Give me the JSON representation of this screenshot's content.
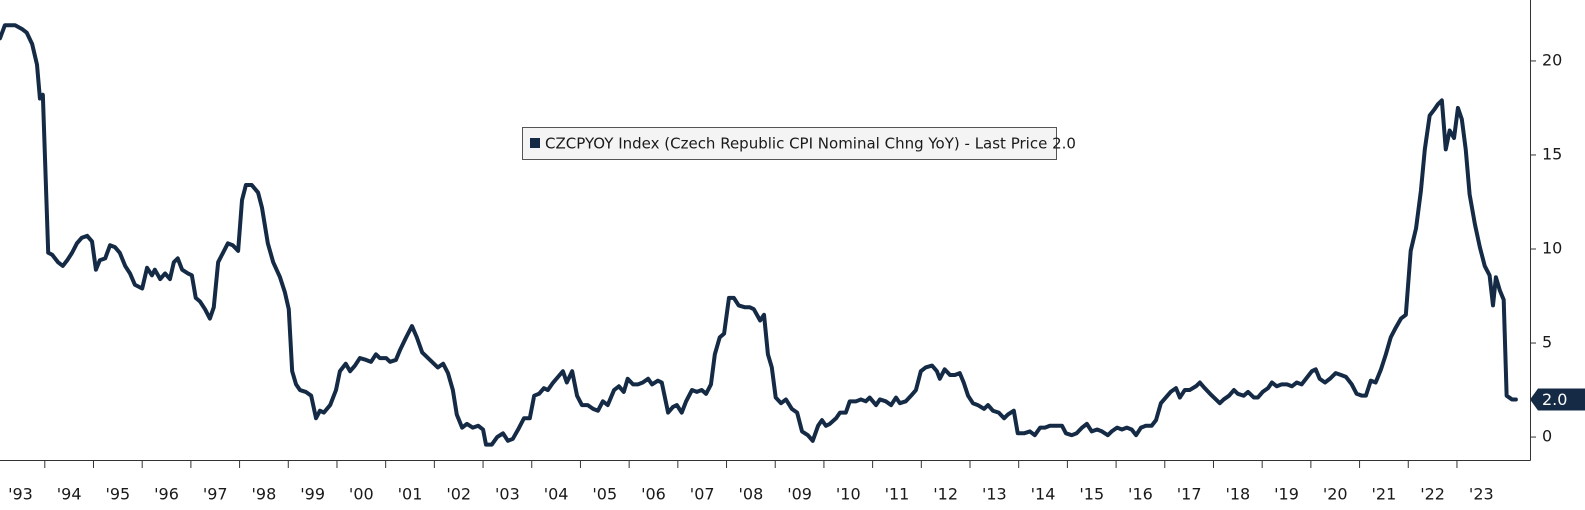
{
  "chart_data": {
    "type": "line",
    "x": [
      1993.08,
      1993.18,
      1993.39,
      1993.53,
      1993.63,
      1993.74,
      1993.84,
      1993.9,
      1993.96,
      1994.07,
      1994.15,
      1994.27,
      1994.37,
      1994.46,
      1994.56,
      1994.66,
      1994.76,
      1994.87,
      1994.97,
      1995.05,
      1995.13,
      1995.24,
      1995.34,
      1995.44,
      1995.54,
      1995.65,
      1995.75,
      1995.85,
      1996.0,
      1996.1,
      1996.2,
      1996.26,
      1996.37,
      1996.47,
      1996.57,
      1996.65,
      1996.73,
      1996.82,
      1996.94,
      1997.02,
      1997.1,
      1997.19,
      1997.29,
      1997.39,
      1997.47,
      1997.56,
      1997.64,
      1997.76,
      1997.86,
      1997.97,
      1998.05,
      1998.13,
      1998.25,
      1998.38,
      1998.46,
      1998.58,
      1998.69,
      1998.83,
      1998.93,
      1999.01,
      1999.08,
      1999.16,
      1999.24,
      1999.36,
      1999.47,
      1999.57,
      1999.65,
      1999.73,
      1999.86,
      1999.98,
      2000.06,
      2000.18,
      2000.27,
      2000.37,
      2000.47,
      2000.6,
      2000.7,
      2000.8,
      2000.88,
      2001.01,
      2001.09,
      2001.21,
      2001.29,
      2001.42,
      2001.54,
      2001.64,
      2001.75,
      2001.87,
      2001.99,
      2002.07,
      2002.18,
      2002.28,
      2002.38,
      2002.46,
      2002.57,
      2002.67,
      2002.79,
      2002.9,
      2003.0,
      2003.06,
      2003.18,
      2003.29,
      2003.41,
      2003.51,
      2003.61,
      2003.72,
      2003.84,
      2003.96,
      2004.05,
      2004.15,
      2004.25,
      2004.33,
      2004.44,
      2004.54,
      2004.64,
      2004.72,
      2004.83,
      2004.93,
      2005.03,
      2005.15,
      2005.26,
      2005.36,
      2005.46,
      2005.56,
      2005.69,
      2005.79,
      2005.89,
      2005.97,
      2006.08,
      2006.18,
      2006.28,
      2006.39,
      2006.47,
      2006.59,
      2006.67,
      2006.8,
      2006.9,
      2006.98,
      2007.08,
      2007.17,
      2007.29,
      2007.39,
      2007.49,
      2007.58,
      2007.68,
      2007.76,
      2007.86,
      2007.95,
      2008.05,
      2008.15,
      2008.25,
      2008.38,
      2008.48,
      2008.56,
      2008.69,
      2008.77,
      2008.85,
      2008.93,
      2009.01,
      2009.12,
      2009.22,
      2009.34,
      2009.45,
      2009.55,
      2009.67,
      2009.77,
      2009.88,
      2009.96,
      2010.04,
      2010.12,
      2010.25,
      2010.33,
      2010.45,
      2010.53,
      2010.66,
      2010.76,
      2010.86,
      2010.94,
      2011.07,
      2011.15,
      2011.27,
      2011.38,
      2011.48,
      2011.56,
      2011.68,
      2011.79,
      2011.89,
      2011.99,
      2012.09,
      2012.22,
      2012.32,
      2012.38,
      2012.48,
      2012.59,
      2012.69,
      2012.79,
      2012.87,
      2012.96,
      2013.06,
      2013.16,
      2013.29,
      2013.37,
      2013.47,
      2013.59,
      2013.7,
      2013.78,
      2013.9,
      2013.98,
      2014.11,
      2014.23,
      2014.33,
      2014.44,
      2014.54,
      2014.64,
      2014.76,
      2014.89,
      2014.97,
      2015.09,
      2015.19,
      2015.3,
      2015.4,
      2015.5,
      2015.61,
      2015.71,
      2015.83,
      2015.91,
      2016.02,
      2016.12,
      2016.22,
      2016.32,
      2016.41,
      2016.51,
      2016.61,
      2016.73,
      2016.82,
      2016.92,
      2017.02,
      2017.12,
      2017.23,
      2017.31,
      2017.41,
      2017.51,
      2017.64,
      2017.72,
      2017.82,
      2017.93,
      2018.05,
      2018.13,
      2018.21,
      2018.32,
      2018.42,
      2018.5,
      2018.62,
      2018.71,
      2018.83,
      2018.91,
      2019.01,
      2019.12,
      2019.2,
      2019.3,
      2019.4,
      2019.51,
      2019.61,
      2019.71,
      2019.81,
      2019.9,
      2020.02,
      2020.1,
      2020.18,
      2020.29,
      2020.39,
      2020.51,
      2020.62,
      2020.72,
      2020.84,
      2020.94,
      2021.05,
      2021.13,
      2021.23,
      2021.33,
      2021.44,
      2021.54,
      2021.64,
      2021.74,
      2021.85,
      2021.95,
      2022.05,
      2022.16,
      2022.26,
      2022.34,
      2022.44,
      2022.53,
      2022.61,
      2022.69,
      2022.77,
      2022.85,
      2022.94,
      2023.02,
      2023.1,
      2023.18,
      2023.26,
      2023.37,
      2023.47,
      2023.57,
      2023.67,
      2023.74,
      2023.8,
      2023.88,
      2023.96,
      2024.02,
      2024.13,
      2024.21
    ],
    "series": [
      {
        "name": "CZCPYOY Index (Czech Republic CPI Nominal Chng YoY) - Last Price 2.0",
        "color": "#142a45",
        "values": [
          21.2,
          21.9,
          21.9,
          21.7,
          21.5,
          20.9,
          19.8,
          18.0,
          18.2,
          9.8,
          9.7,
          9.3,
          9.1,
          9.4,
          9.8,
          10.3,
          10.6,
          10.7,
          10.4,
          8.9,
          9.4,
          9.5,
          10.2,
          10.1,
          9.8,
          9.1,
          8.7,
          8.1,
          7.9,
          9.0,
          8.6,
          8.9,
          8.4,
          8.7,
          8.4,
          9.3,
          9.5,
          8.9,
          8.7,
          8.6,
          7.4,
          7.2,
          6.8,
          6.3,
          6.9,
          9.3,
          9.7,
          10.3,
          10.2,
          9.9,
          12.6,
          13.4,
          13.4,
          13.0,
          12.2,
          10.3,
          9.3,
          8.5,
          7.7,
          6.8,
          3.5,
          2.8,
          2.5,
          2.4,
          2.2,
          1.0,
          1.4,
          1.3,
          1.7,
          2.5,
          3.5,
          3.9,
          3.5,
          3.8,
          4.2,
          4.1,
          4.0,
          4.4,
          4.2,
          4.2,
          4.0,
          4.1,
          4.6,
          5.3,
          5.9,
          5.3,
          4.5,
          4.2,
          3.9,
          3.7,
          3.9,
          3.4,
          2.5,
          1.2,
          0.5,
          0.7,
          0.5,
          0.6,
          0.4,
          -0.4,
          -0.4,
          0.0,
          0.2,
          -0.2,
          -0.1,
          0.4,
          1.0,
          1.0,
          2.2,
          2.3,
          2.6,
          2.5,
          2.9,
          3.2,
          3.5,
          2.9,
          3.5,
          2.2,
          1.7,
          1.7,
          1.5,
          1.4,
          1.9,
          1.7,
          2.5,
          2.7,
          2.4,
          3.1,
          2.8,
          2.8,
          2.9,
          3.1,
          2.8,
          3.0,
          2.9,
          1.3,
          1.6,
          1.7,
          1.3,
          1.9,
          2.5,
          2.4,
          2.5,
          2.3,
          2.8,
          4.4,
          5.3,
          5.5,
          7.4,
          7.4,
          7.0,
          6.9,
          6.9,
          6.8,
          6.2,
          6.5,
          4.4,
          3.7,
          2.1,
          1.8,
          2.0,
          1.5,
          1.3,
          0.3,
          0.1,
          -0.2,
          0.6,
          0.9,
          0.6,
          0.7,
          1.0,
          1.3,
          1.3,
          1.9,
          1.9,
          2.0,
          1.9,
          2.1,
          1.7,
          2.0,
          1.9,
          1.7,
          2.1,
          1.8,
          1.9,
          2.2,
          2.5,
          3.5,
          3.7,
          3.8,
          3.5,
          3.1,
          3.6,
          3.3,
          3.3,
          3.4,
          2.9,
          2.2,
          1.8,
          1.7,
          1.5,
          1.7,
          1.4,
          1.3,
          1.0,
          1.2,
          1.4,
          0.2,
          0.2,
          0.3,
          0.1,
          0.5,
          0.5,
          0.6,
          0.6,
          0.6,
          0.2,
          0.1,
          0.2,
          0.5,
          0.7,
          0.3,
          0.4,
          0.3,
          0.1,
          0.3,
          0.5,
          0.4,
          0.5,
          0.4,
          0.1,
          0.5,
          0.6,
          0.6,
          0.9,
          1.8,
          2.1,
          2.4,
          2.6,
          2.1,
          2.5,
          2.5,
          2.7,
          2.9,
          2.6,
          2.3,
          2.0,
          1.8,
          2.0,
          2.2,
          2.5,
          2.3,
          2.2,
          2.4,
          2.1,
          2.1,
          2.4,
          2.6,
          2.9,
          2.7,
          2.8,
          2.8,
          2.7,
          2.9,
          2.8,
          3.1,
          3.5,
          3.6,
          3.1,
          2.9,
          3.1,
          3.4,
          3.3,
          3.2,
          2.8,
          2.3,
          2.2,
          2.2,
          3.0,
          2.9,
          3.6,
          4.4,
          5.3,
          5.8,
          6.3,
          6.5,
          9.9,
          11.1,
          13.1,
          15.3,
          17.1,
          17.4,
          17.7,
          17.9,
          15.3,
          16.3,
          15.9,
          17.5,
          16.9,
          15.3,
          12.9,
          11.3,
          10.1,
          9.1,
          8.6,
          7.0,
          8.5,
          7.8,
          7.3,
          2.2,
          2.0,
          2.0
        ]
      }
    ],
    "last_value_label": "2.0",
    "xlim": [
      1993.08,
      2024.5
    ],
    "xticks": [
      {
        "value": 1993.5,
        "label": "'93"
      },
      {
        "value": 1994.5,
        "label": "'94"
      },
      {
        "value": 1995.5,
        "label": "'95"
      },
      {
        "value": 1996.5,
        "label": "'96"
      },
      {
        "value": 1997.5,
        "label": "'97"
      },
      {
        "value": 1998.5,
        "label": "'98"
      },
      {
        "value": 1999.5,
        "label": "'99"
      },
      {
        "value": 2000.5,
        "label": "'00"
      },
      {
        "value": 2001.5,
        "label": "'01"
      },
      {
        "value": 2002.5,
        "label": "'02"
      },
      {
        "value": 2003.5,
        "label": "'03"
      },
      {
        "value": 2004.5,
        "label": "'04"
      },
      {
        "value": 2005.5,
        "label": "'05"
      },
      {
        "value": 2006.5,
        "label": "'06"
      },
      {
        "value": 2007.5,
        "label": "'07"
      },
      {
        "value": 2008.5,
        "label": "'08"
      },
      {
        "value": 2009.5,
        "label": "'09"
      },
      {
        "value": 2010.5,
        "label": "'10"
      },
      {
        "value": 2011.5,
        "label": "'11"
      },
      {
        "value": 2012.5,
        "label": "'12"
      },
      {
        "value": 2013.5,
        "label": "'13"
      },
      {
        "value": 2014.5,
        "label": "'14"
      },
      {
        "value": 2015.5,
        "label": "'15"
      },
      {
        "value": 2016.5,
        "label": "'16"
      },
      {
        "value": 2017.5,
        "label": "'17"
      },
      {
        "value": 2018.5,
        "label": "'18"
      },
      {
        "value": 2019.5,
        "label": "'19"
      },
      {
        "value": 2020.5,
        "label": "'20"
      },
      {
        "value": 2021.5,
        "label": "'21"
      },
      {
        "value": 2022.5,
        "label": "'22"
      },
      {
        "value": 2023.5,
        "label": "'23"
      }
    ],
    "ylim": [
      -1.22,
      23.24
    ],
    "yticks": [
      0,
      5,
      10,
      15,
      20
    ],
    "y_axis_side": "right",
    "grid": false
  }
}
